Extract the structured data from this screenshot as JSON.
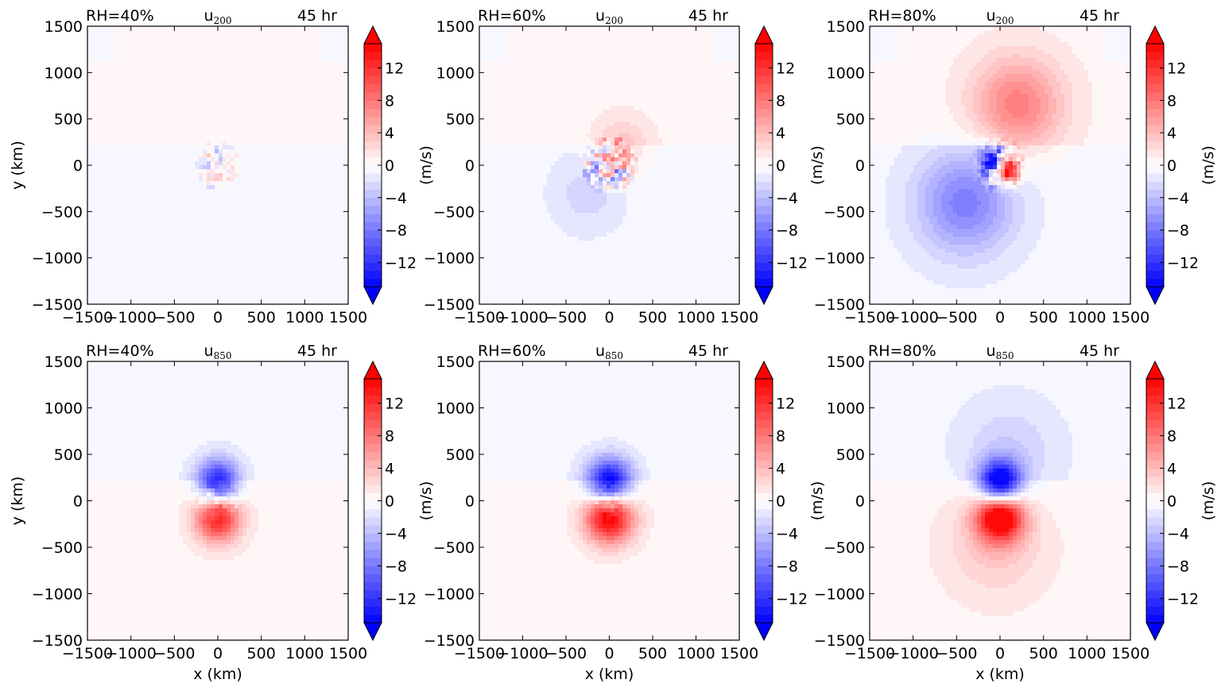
{
  "colors": {
    "neg_max": "#0000ff",
    "pos_max": "#ff0000",
    "neutral": "#ffffff",
    "bg_pos_faint": "#fff4f3",
    "bg_neg_faint": "#f4f5ff"
  },
  "colorbar": {
    "label": "(m/s)",
    "ticks": [
      "12",
      "8",
      "4",
      "0",
      "−4",
      "−8",
      "−12"
    ],
    "tick_values": [
      12,
      8,
      4,
      0,
      -4,
      -8,
      -12
    ],
    "range": [
      -15,
      15
    ],
    "extend": "both"
  },
  "axes": {
    "xlabel": "x (km)",
    "ylabel": "y (km)",
    "xlim": [
      -1500,
      1500
    ],
    "ylim": [
      -1500,
      1500
    ],
    "xticks": [
      "−1500",
      "−1000",
      "−500",
      "0",
      "500",
      "1000",
      "1500"
    ],
    "yticks": [
      "1500",
      "1000",
      "500",
      "0",
      "−500",
      "−1000",
      "−1500"
    ],
    "tick_values": [
      -1500,
      -1000,
      -500,
      0,
      500,
      1000,
      1500
    ]
  },
  "chart_data": [
    {
      "type": "heatmap",
      "left_title": "RH=40%",
      "center_title_base": "u",
      "center_title_sub": "200",
      "right_title": "45 hr",
      "features": [
        {
          "kind": "noise",
          "x": 0,
          "y": 0,
          "r": 260,
          "amp": 5
        }
      ]
    },
    {
      "type": "heatmap",
      "left_title": "RH=60%",
      "center_title_base": "u",
      "center_title_sub": "200",
      "right_title": "45 hr",
      "features": [
        {
          "kind": "blob",
          "x": -250,
          "y": -300,
          "r": 500,
          "amp": -2
        },
        {
          "kind": "blob",
          "x": 150,
          "y": 200,
          "r": 400,
          "amp": 3
        },
        {
          "kind": "noise",
          "x": 0,
          "y": 0,
          "r": 320,
          "amp": 9
        }
      ]
    },
    {
      "type": "heatmap",
      "left_title": "RH=80%",
      "center_title_base": "u",
      "center_title_sub": "200",
      "right_title": "45 hr",
      "features": [
        {
          "kind": "blob",
          "x": 200,
          "y": 650,
          "r": 650,
          "amp": 7
        },
        {
          "kind": "blob",
          "x": -400,
          "y": -400,
          "r": 700,
          "amp": -7
        },
        {
          "kind": "blob",
          "x": 80,
          "y": -60,
          "r": 170,
          "amp": 15
        },
        {
          "kind": "blob",
          "x": -100,
          "y": 70,
          "r": 170,
          "amp": -14
        },
        {
          "kind": "noise",
          "x": 0,
          "y": 0,
          "r": 300,
          "amp": 6
        }
      ]
    },
    {
      "type": "heatmap",
      "left_title": "RH=40%",
      "center_title_base": "u",
      "center_title_sub": "850",
      "right_title": "45 hr",
      "features": [
        {
          "kind": "blob",
          "x": 0,
          "y": 200,
          "r": 300,
          "amp": -13
        },
        {
          "kind": "blob",
          "x": 0,
          "y": -180,
          "r": 320,
          "amp": 13
        },
        {
          "kind": "noise",
          "x": 0,
          "y": 0,
          "r": 250,
          "amp": 3
        }
      ]
    },
    {
      "type": "heatmap",
      "left_title": "RH=60%",
      "center_title_base": "u",
      "center_title_sub": "850",
      "right_title": "45 hr",
      "features": [
        {
          "kind": "blob",
          "x": 0,
          "y": 190,
          "r": 320,
          "amp": -16
        },
        {
          "kind": "blob",
          "x": 0,
          "y": -170,
          "r": 340,
          "amp": 16
        },
        {
          "kind": "noise",
          "x": 0,
          "y": 0,
          "r": 200,
          "amp": 3
        }
      ]
    },
    {
      "type": "heatmap",
      "left_title": "RH=80%",
      "center_title_base": "u",
      "center_title_sub": "850",
      "right_title": "45 hr",
      "features": [
        {
          "kind": "blob",
          "x": 0,
          "y": 180,
          "r": 300,
          "amp": -18
        },
        {
          "kind": "blob",
          "x": 0,
          "y": -160,
          "r": 330,
          "amp": 18
        },
        {
          "kind": "blob",
          "x": 100,
          "y": 500,
          "r": 700,
          "amp": -2.5
        },
        {
          "kind": "blob",
          "x": -50,
          "y": -450,
          "r": 700,
          "amp": 3
        }
      ]
    }
  ]
}
